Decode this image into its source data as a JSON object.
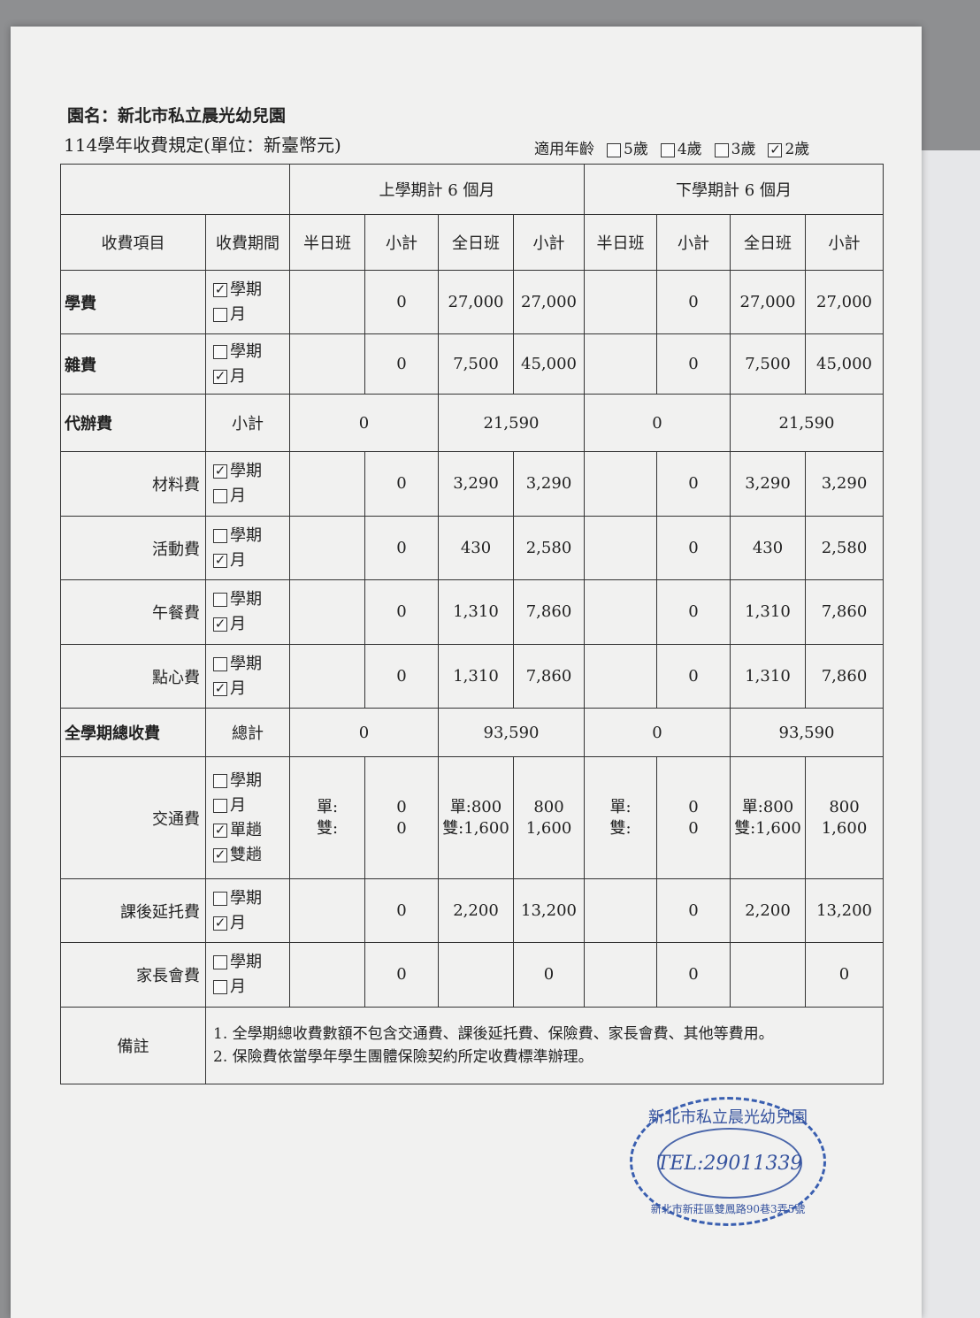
{
  "kindergarten_name": "園名：新北市私立晨光幼兒園",
  "fee_title": "114學年收費規定(單位：新臺幣元)",
  "ages": {
    "label": "適用年齡",
    "options": [
      {
        "label": "5歲",
        "checked": false
      },
      {
        "label": "4歲",
        "checked": false
      },
      {
        "label": "3歲",
        "checked": false
      },
      {
        "label": "2歲",
        "checked": true
      }
    ]
  },
  "header": {
    "first_semester": "上學期計 6 個月",
    "second_semester": "下學期計 6 個月",
    "item": "收費項目",
    "period": "收費期間",
    "cols": [
      "半日班",
      "小計",
      "全日班",
      "小計",
      "半日班",
      "小計",
      "全日班",
      "小計"
    ]
  },
  "rows": [
    {
      "name": "學費",
      "bold": true,
      "periods": [
        {
          "label": "學期",
          "checked": true
        },
        {
          "label": "月",
          "checked": false
        }
      ],
      "values": [
        "",
        "0",
        "27,000",
        "27,000",
        "",
        "0",
        "27,000",
        "27,000"
      ]
    },
    {
      "name": "雜費",
      "bold": true,
      "periods": [
        {
          "label": "學期",
          "checked": false
        },
        {
          "label": "月",
          "checked": true
        }
      ],
      "values": [
        "",
        "0",
        "7,500",
        "45,000",
        "",
        "0",
        "7,500",
        "45,000"
      ]
    },
    {
      "name": "代辦費",
      "bold": true,
      "summary_label": "小計",
      "summary": [
        "0",
        "21,590",
        "0",
        "21,590"
      ]
    },
    {
      "name": "材料費",
      "periods": [
        {
          "label": "學期",
          "checked": true
        },
        {
          "label": "月",
          "checked": false
        }
      ],
      "values": [
        "",
        "0",
        "3,290",
        "3,290",
        "",
        "0",
        "3,290",
        "3,290"
      ]
    },
    {
      "name": "活動費",
      "periods": [
        {
          "label": "學期",
          "checked": false
        },
        {
          "label": "月",
          "checked": true
        }
      ],
      "values": [
        "",
        "0",
        "430",
        "2,580",
        "",
        "0",
        "430",
        "2,580"
      ]
    },
    {
      "name": "午餐費",
      "periods": [
        {
          "label": "學期",
          "checked": false
        },
        {
          "label": "月",
          "checked": true
        }
      ],
      "values": [
        "",
        "0",
        "1,310",
        "7,860",
        "",
        "0",
        "1,310",
        "7,860"
      ]
    },
    {
      "name": "點心費",
      "periods": [
        {
          "label": "學期",
          "checked": false
        },
        {
          "label": "月",
          "checked": true
        }
      ],
      "values": [
        "",
        "0",
        "1,310",
        "7,860",
        "",
        "0",
        "1,310",
        "7,860"
      ]
    },
    {
      "name": "全學期總收費",
      "bold": true,
      "summary_label": "總計",
      "summary": [
        "0",
        "93,590",
        "0",
        "93,590"
      ]
    },
    {
      "name": "交通費",
      "periods": [
        {
          "label": "學期",
          "checked": false
        },
        {
          "label": "月",
          "checked": false
        },
        {
          "label": "單趟",
          "checked": true
        },
        {
          "label": "雙趟",
          "checked": true
        }
      ],
      "values": [
        "單:\n雙:",
        "0\n0",
        "單:800\n雙:1,600",
        "800\n1,600",
        "單:\n雙:",
        "0\n0",
        "單:800\n雙:1,600",
        "800\n1,600"
      ]
    },
    {
      "name": "課後延托費",
      "periods": [
        {
          "label": "學期",
          "checked": false
        },
        {
          "label": "月",
          "checked": true
        }
      ],
      "values": [
        "",
        "0",
        "2,200",
        "13,200",
        "",
        "0",
        "2,200",
        "13,200"
      ]
    },
    {
      "name": "家長會費",
      "periods": [
        {
          "label": "學期",
          "checked": false
        },
        {
          "label": "月",
          "checked": false
        }
      ],
      "values": [
        "",
        "0",
        "",
        "0",
        "",
        "0",
        "",
        "0"
      ]
    }
  ],
  "remarks": {
    "label": "備註",
    "items": [
      "1. 全學期總收費數額不包含交通費、課後延托費、保險費、家長會費、其他等費用。",
      "2. 保險費依當學年學生團體保險契約所定收費標準辦理。"
    ]
  },
  "stamp": {
    "top": "新北市私立晨光幼兒園",
    "tel": "TEL:29011339",
    "address": "新北市新莊區雙鳳路90巷3弄5號"
  },
  "colors": {
    "stamp": "#35529e",
    "paper": "#f1f1f0"
  }
}
